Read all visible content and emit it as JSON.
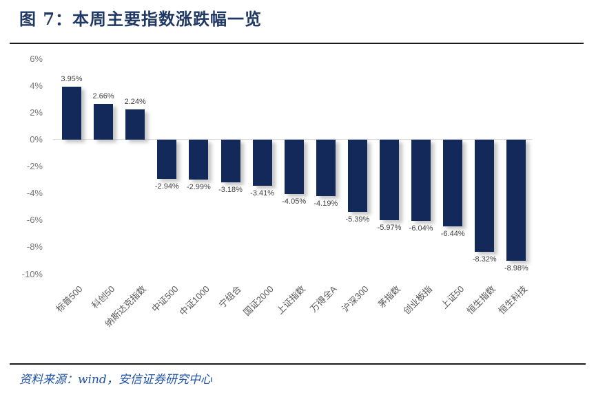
{
  "figure": {
    "header": "图 7：本周主要指数涨跌幅一览",
    "source": "资料来源：wind，安信证券研究中心"
  },
  "chart_data": {
    "type": "bar",
    "title": "本周主要指数涨跌幅一览",
    "categories": [
      "标普500",
      "科创50",
      "纳斯达克指数",
      "中证500",
      "中证1000",
      "宁组合",
      "国证2000",
      "上证指数",
      "万得全A",
      "沪深300",
      "茅指数",
      "创业板指",
      "上证50",
      "恒生指数",
      "恒生科技"
    ],
    "values": [
      3.95,
      2.66,
      2.24,
      -2.94,
      -2.99,
      -3.18,
      -3.41,
      -4.05,
      -4.19,
      -5.39,
      -5.97,
      -6.04,
      -6.44,
      -8.32,
      -8.98
    ],
    "data_labels": [
      "3.95%",
      "2.66%",
      "2.24%",
      "-2.94%",
      "-2.99%",
      "-3.18%",
      "-3.41%",
      "-4.05%",
      "-4.19%",
      "-5.39%",
      "-5.97%",
      "-6.04%",
      "-6.44%",
      "-8.32%",
      "-8.98%"
    ],
    "xlabel": "",
    "ylabel": "",
    "ylim": [
      -10,
      6
    ],
    "yticks": [
      6,
      4,
      2,
      0,
      -2,
      -4,
      -6,
      -8,
      -10
    ],
    "ytick_labels": [
      "6%",
      "4%",
      "2%",
      "0%",
      "-2%",
      "-4%",
      "-6%",
      "-8%",
      "-10%"
    ],
    "grid": false,
    "legend": "none",
    "bar_color": "#13295A"
  },
  "colors": {
    "title_text": "#1F3864",
    "source_text": "#2154A6",
    "bar": "#13295A",
    "zero_axis_line": "#D9D9D9",
    "y_tick_label": "#767676",
    "x_tick_label": "#595959",
    "value_label": "#3F3F3F",
    "divider": "#1A1A1A"
  }
}
